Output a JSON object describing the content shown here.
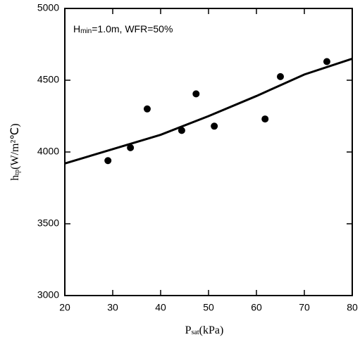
{
  "chart_data": {
    "type": "scatter",
    "annotation": {
      "main": "H",
      "sub": "min",
      "rest": "=1.0m, WFR=50%"
    },
    "xlabel": {
      "main": "P",
      "sub": "sat",
      "rest": "(kPa)"
    },
    "ylabel": {
      "main": "h",
      "sub": "tp",
      "rest": "(W/m²℃)"
    },
    "points": {
      "x": [
        29,
        33.7,
        37.2,
        44.4,
        47.4,
        51.2,
        61.8,
        65,
        74.7
      ],
      "y": [
        3940,
        4030,
        4300,
        4150,
        4405,
        4180,
        4230,
        4525,
        4630
      ],
      "color": "#000000"
    },
    "fit": {
      "x": [
        20,
        30,
        40,
        50,
        60,
        70,
        80
      ],
      "y": [
        3920,
        4020,
        4120,
        4250,
        4390,
        4540,
        4650
      ],
      "color": "#000000"
    },
    "xlim": [
      20,
      80
    ],
    "xticks": [
      20,
      30,
      40,
      50,
      60,
      70,
      80
    ],
    "ylim": [
      3000,
      5000
    ],
    "yticks": [
      3000,
      3500,
      4000,
      4500,
      5000
    ],
    "grid": false
  }
}
